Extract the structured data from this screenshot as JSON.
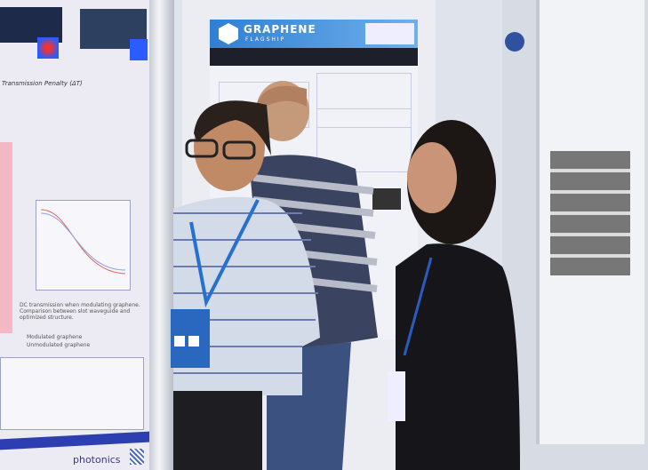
{
  "left_poster": {
    "formula_label": "Transmission Penalty (ΔT)",
    "caption": "DC transmission when modulating graphene. Comparison between slot waveguide and optimized structure.",
    "legend": [
      "Modulated graphene",
      "Unmodulated graphene"
    ],
    "logo_text": "photonics",
    "colors": {
      "band": "#2d3fb0",
      "background": "#eceaf3"
    }
  },
  "center_poster": {
    "logo_title": "GRAPHENE",
    "logo_subtitle": "FLAGSHIP",
    "colors": {
      "banner": "#2f7fd4",
      "subtitle_bar": "#1d1f2a"
    }
  }
}
